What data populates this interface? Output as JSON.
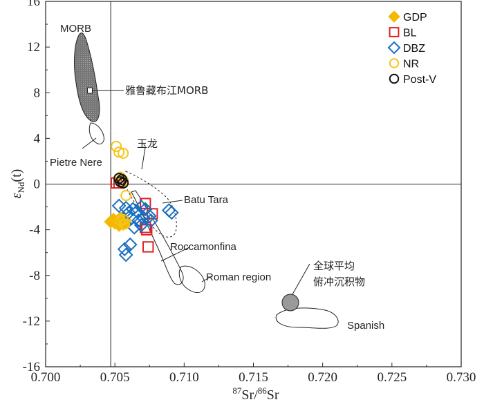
{
  "chart_data": {
    "type": "scatter",
    "title": "",
    "xlabel": {
      "pre": "87",
      "a": "Sr/",
      "mid": "86",
      "b": "Sr"
    },
    "ylabel": {
      "eps": "ε",
      "sub": "Nd",
      "tail": "(t)"
    },
    "xlim": [
      0.7,
      0.73
    ],
    "ylim": [
      -16,
      16
    ],
    "xticks": [
      0.7,
      0.705,
      0.71,
      0.715,
      0.72,
      0.725,
      0.73
    ],
    "xtick_labels": [
      "0.700",
      "0.705",
      "0.710",
      "0.715",
      "0.720",
      "0.725",
      "0.730"
    ],
    "yticks": [
      -16,
      -12,
      -8,
      -4,
      0,
      4,
      8,
      12,
      16
    ],
    "ytick_labels": [
      "-16",
      "-12",
      "-8",
      "-4",
      "0",
      "4",
      "8",
      "12",
      "16"
    ],
    "ref_lines": {
      "x": 0.7047,
      "y": 0
    },
    "legend": {
      "position": "top-right"
    },
    "series": [
      {
        "name": "GDP",
        "marker": "diamond-filled",
        "color": "#F5B800",
        "points": [
          [
            0.7047,
            -3.3
          ],
          [
            0.7049,
            -3.1
          ],
          [
            0.705,
            -3.4
          ],
          [
            0.7052,
            -3.2
          ],
          [
            0.7054,
            -3.0
          ],
          [
            0.7056,
            -3.5
          ],
          [
            0.7055,
            -3.3
          ],
          [
            0.7057,
            -3.1
          ],
          [
            0.7053,
            -3.6
          ],
          [
            0.7058,
            -3.4
          ]
        ]
      },
      {
        "name": "BL",
        "marker": "square",
        "color": "#E02020",
        "points": [
          [
            0.7051,
            0.1
          ],
          [
            0.7053,
            0.1
          ],
          [
            0.7072,
            -1.7
          ],
          [
            0.7077,
            -2.6
          ],
          [
            0.7072,
            -3.8
          ],
          [
            0.7073,
            -4.0
          ],
          [
            0.7074,
            -5.5
          ]
        ]
      },
      {
        "name": "DBZ",
        "marker": "diamond",
        "color": "#1B6FC0",
        "points": [
          [
            0.7053,
            -1.9
          ],
          [
            0.7058,
            -2.1
          ],
          [
            0.706,
            -2.5
          ],
          [
            0.7063,
            -2.2
          ],
          [
            0.7066,
            -2.4
          ],
          [
            0.7069,
            -2.0
          ],
          [
            0.7072,
            -2.2
          ],
          [
            0.7075,
            -2.8
          ],
          [
            0.7062,
            -3.0
          ],
          [
            0.7067,
            -3.2
          ],
          [
            0.7071,
            -3.0
          ],
          [
            0.7064,
            -3.8
          ],
          [
            0.7069,
            -3.6
          ],
          [
            0.7076,
            -3.2
          ],
          [
            0.7089,
            -2.3
          ],
          [
            0.7091,
            -2.5
          ],
          [
            0.7061,
            -5.3
          ],
          [
            0.7057,
            -5.7
          ],
          [
            0.7058,
            -6.2
          ]
        ]
      },
      {
        "name": "NR",
        "marker": "circle",
        "color": "#F5C518",
        "points": [
          [
            0.7051,
            3.3
          ],
          [
            0.7053,
            2.8
          ],
          [
            0.7056,
            2.7
          ],
          [
            0.7054,
            0.6
          ],
          [
            0.7056,
            0.3
          ],
          [
            0.7058,
            -1.0
          ],
          [
            0.7054,
            -3.2
          ],
          [
            0.7056,
            -3.1
          ],
          [
            0.7057,
            -3.5
          ]
        ]
      },
      {
        "name": "Post-V",
        "marker": "circle",
        "color": "#111111",
        "points": [
          [
            0.7053,
            0.5
          ],
          [
            0.7054,
            0.2
          ],
          [
            0.7055,
            0.4
          ],
          [
            0.7056,
            0.1
          ]
        ]
      }
    ],
    "annotations": [
      "MORB",
      "雅鲁藏布江MORB",
      "Pietre Nere",
      "玉龙",
      "Batu Tara",
      "Roccamonfina",
      "Roman region",
      "全球平均",
      "俯冲沉积物",
      "Spanish"
    ]
  }
}
